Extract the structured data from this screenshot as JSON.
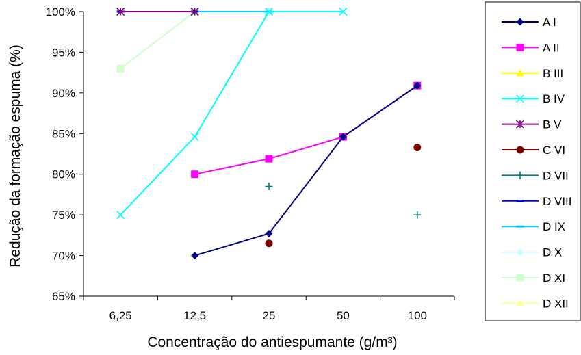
{
  "chart_data": {
    "type": "line",
    "title": "",
    "xlabel": "Concentração do antiespumante (g/m³)",
    "ylabel": "Redução da formação espuma (%)",
    "categories": [
      "6,25",
      "12,5",
      "25",
      "50",
      "100"
    ],
    "ylim": [
      65,
      100
    ],
    "yticks": [
      65,
      70,
      75,
      80,
      85,
      90,
      95,
      100
    ],
    "ytick_format": "percent",
    "grid": false,
    "legend_position": "right",
    "series": [
      {
        "name": "A I",
        "color": "#000080",
        "marker": "diamond",
        "values": [
          null,
          70,
          72.7,
          84.6,
          90.9
        ]
      },
      {
        "name": "A II",
        "color": "#FF00FF",
        "marker": "square",
        "values": [
          null,
          80,
          81.9,
          84.6,
          90.9
        ]
      },
      {
        "name": "B III",
        "color": "#FFFF00",
        "marker": "triangle",
        "values": [
          null,
          80,
          null,
          null,
          null
        ]
      },
      {
        "name": "B IV",
        "color": "#00FFFF",
        "marker": "x",
        "values": [
          75,
          84.6,
          100,
          100,
          null
        ]
      },
      {
        "name": "B V",
        "color": "#800080",
        "marker": "asterisk",
        "values": [
          100,
          100,
          null,
          null,
          null
        ]
      },
      {
        "name": "C VI",
        "color": "#800000",
        "marker": "circle",
        "values": [
          null,
          null,
          71.5,
          null,
          83.3
        ]
      },
      {
        "name": "D VII",
        "color": "#008080",
        "marker": "plus",
        "values": [
          null,
          null,
          78.5,
          null,
          75
        ]
      },
      {
        "name": "D VIII",
        "color": "#0000FF",
        "marker": "dash",
        "values": [
          100,
          100,
          null,
          null,
          null
        ]
      },
      {
        "name": "D IX",
        "color": "#00CCFF",
        "marker": "dash",
        "values": [
          100,
          100,
          100,
          null,
          null
        ]
      },
      {
        "name": "D X",
        "color": "#CCFFFF",
        "marker": "diamond",
        "values": [
          null,
          100,
          100,
          null,
          null
        ]
      },
      {
        "name": "D XI",
        "color": "#CCFFCC",
        "marker": "square",
        "values": [
          93,
          100,
          100,
          null,
          null
        ]
      },
      {
        "name": "D XII",
        "color": "#FFFF99",
        "marker": "triangle",
        "values": [
          null,
          80,
          null,
          null,
          null
        ]
      }
    ]
  }
}
